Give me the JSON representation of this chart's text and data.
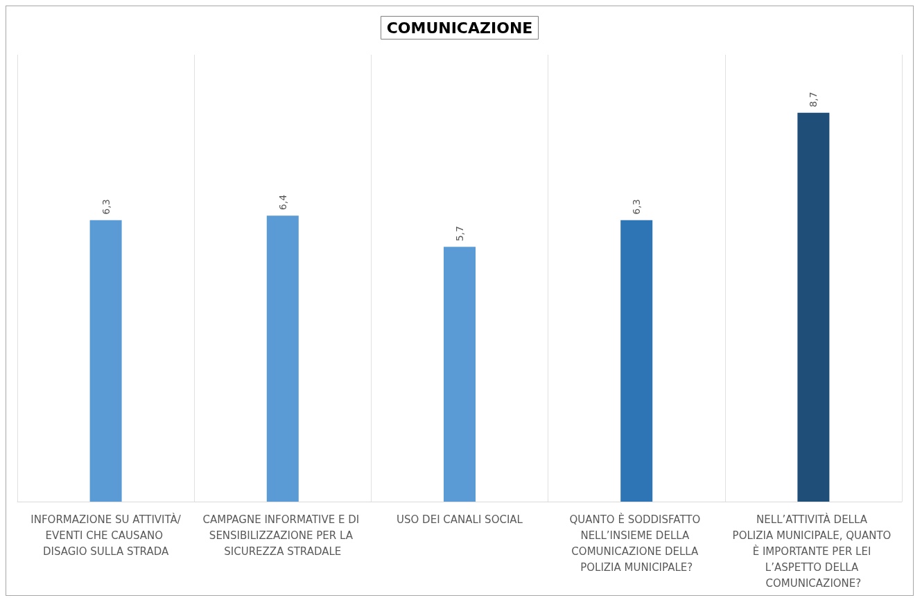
{
  "chart_data": {
    "type": "bar",
    "title": "COMUNICAZIONE",
    "categories": [
      "INFORMAZIONE SU ATTIVITÀ/EVENTI CHE CAUSANO DISAGIO SULLA STRADA",
      "CAMPAGNE INFORMATIVE E DI SENSIBILIZZAZIONE PER LA SICUREZZA STRADALE",
      "USO DEI CANALI SOCIAL",
      "QUANTO È SODDISFATTO NELL’INSIEME DELLA COMUNICAZIONE DELLA POLIZIA MUNICIPALE?",
      "NELL’ATTIVITÀ DELLA POLIZIA MUNICIPALE, QUANTO È IMPORTANTE PER LEI L’ASPETTO DELLA COMUNICAZIONE?"
    ],
    "values": [
      6.3,
      6.4,
      5.7,
      6.3,
      8.7
    ],
    "value_labels": [
      "6,3",
      "6,4",
      "5,7",
      "6,3",
      "8,7"
    ],
    "colors": [
      "#5b9bd5",
      "#5b9bd5",
      "#5b9bd5",
      "#2e75b6",
      "#1f4e79"
    ],
    "ylim": [
      0,
      10
    ],
    "grid": "x"
  }
}
